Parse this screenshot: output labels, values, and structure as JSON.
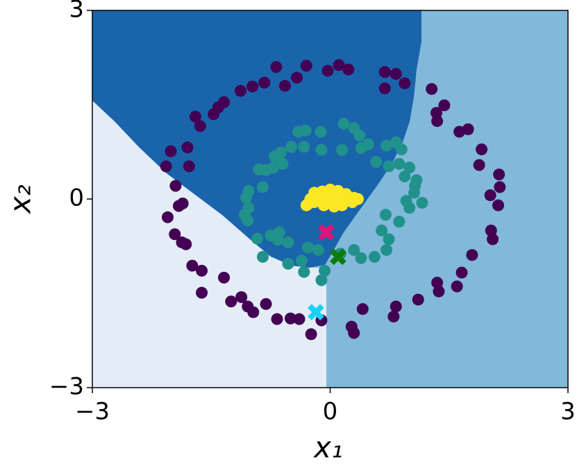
{
  "chart_data": {
    "type": "scatter",
    "x_label": "x₁",
    "y_label": "x₂",
    "xlim": [
      -3,
      3
    ],
    "ylim": [
      -3,
      3
    ],
    "xticks": [
      {
        "value": -3,
        "label": "−3"
      },
      0,
      3
    ],
    "yticks": [
      {
        "value": -3,
        "label": "−3"
      },
      0,
      3
    ],
    "series": [
      {
        "color": "#440154",
        "marker": "o",
        "x": [
          -0.68,
          -0.3,
          -0.03,
          0.11,
          0.23,
          -0.42,
          -0.57,
          -0.83,
          -0.98,
          -1.13,
          -1.34,
          -1.41,
          -1.47,
          -1.7,
          -1.64,
          -1.8,
          -2.01,
          -1.78,
          -2.07,
          -1.95,
          -1.86,
          -1.91,
          -2.05,
          -1.96,
          -1.87,
          -1.82,
          -1.74,
          -1.62,
          -1.34,
          -1.62,
          -1.25,
          -1.12,
          -1.04,
          -0.97,
          -0.81,
          -0.67,
          -0.5,
          -0.39,
          -0.24,
          -0.11,
          0.27,
          0.3,
          0.41,
          0.83,
          0.8,
          1.11,
          1.35,
          1.37,
          1.6,
          1.66,
          1.79,
          2.03,
          2.05,
          2.12,
          2.02,
          2.13,
          1.88,
          1.91,
          1.63,
          1.74,
          1.35,
          1.28,
          1.44,
          0.94,
          0.83,
          0.69,
          0.69,
          1.34,
          2.14
        ],
        "y": [
          2.1,
          2.12,
          2.04,
          2.13,
          2.06,
          1.93,
          1.8,
          1.85,
          1.79,
          1.72,
          1.54,
          1.46,
          1.35,
          1.31,
          1.16,
          0.82,
          0.76,
          0.52,
          0.52,
          0.21,
          -0.07,
          -0.11,
          -0.29,
          -0.56,
          -0.69,
          -0.72,
          -1.06,
          -1.14,
          -1.25,
          -1.49,
          -1.63,
          -1.56,
          -1.71,
          -1.8,
          -1.67,
          -1.91,
          -1.9,
          -1.91,
          -2.15,
          -1.93,
          -2.03,
          -2.13,
          -1.75,
          -1.71,
          -1.87,
          -1.6,
          -1.33,
          -1.47,
          -1.39,
          -1.17,
          -0.89,
          -0.5,
          -0.64,
          -0.1,
          0.06,
          0.39,
          0.54,
          0.79,
          1.07,
          1.11,
          1.24,
          1.75,
          1.49,
          1.84,
          1.99,
          2.02,
          1.76,
          1.37,
          0.19
        ]
      },
      {
        "color": "#21918c",
        "marker": "o",
        "x": [
          -0.4,
          -0.31,
          -0.12,
          0.17,
          0.3,
          0.37,
          0.15,
          0.39,
          0.48,
          0.71,
          0.83,
          0.9,
          0.87,
          1.0,
          0.94,
          0.74,
          0.58,
          -0.11,
          -0.49,
          -0.62,
          -0.7,
          -0.72,
          -0.81,
          -0.9,
          -0.85,
          -1.03,
          -1.06,
          -1.03,
          -1.08,
          -1.04,
          -0.92,
          -0.75,
          -0.64,
          -0.53,
          -0.66,
          -0.85,
          -0.53,
          -0.33,
          -0.11,
          -0.15,
          0.13,
          0.3,
          0.39,
          0.56,
          0.71,
          0.74,
          0.65,
          0.87,
          1.0,
          1.16,
          1.07,
          1.06,
          0.96,
          1.09,
          0.7,
          -0.07,
          -0.36,
          -0.33,
          -0.6,
          -0.28
        ],
        "y": [
          1.07,
          1.09,
          1.07,
          1.2,
          1.13,
          1.01,
          0.78,
          0.81,
          0.87,
          0.85,
          0.9,
          0.79,
          0.56,
          0.5,
          0.36,
          0.52,
          0.59,
          0.78,
          0.83,
          0.74,
          0.68,
          0.5,
          0.46,
          0.47,
          0.19,
          0.13,
          0.02,
          -0.14,
          -0.25,
          -0.34,
          -0.63,
          -0.58,
          -0.53,
          -0.69,
          -0.65,
          -0.92,
          -1.03,
          -1.16,
          -1.29,
          -0.81,
          -0.87,
          -0.81,
          -0.94,
          -0.92,
          -0.81,
          -0.64,
          -0.5,
          -0.36,
          -0.14,
          -0.06,
          0.21,
          0.1,
          -0.03,
          0.3,
          -0.25,
          -1.14,
          -0.98,
          0.83,
          0.56,
          -0.77
        ]
      },
      {
        "color": "#fde725",
        "marker": "o",
        "x": [
          -0.25,
          -0.2,
          -0.1,
          0.0,
          0.1,
          0.2,
          0.3,
          0.28,
          0.15,
          0.05,
          -0.08,
          -0.2,
          -0.28,
          0.0,
          0.1,
          -0.1,
          0.05,
          0.2,
          -0.15,
          0.12,
          -0.3,
          0.35
        ],
        "y": [
          0.0,
          0.1,
          0.12,
          0.15,
          0.13,
          0.08,
          0.02,
          -0.05,
          -0.1,
          -0.12,
          -0.1,
          -0.05,
          -0.08,
          0.0,
          0.03,
          0.02,
          0.08,
          -0.02,
          0.07,
          -0.05,
          -0.1,
          0.0
        ]
      },
      {
        "color": "#e0157a",
        "marker": "X",
        "x": [
          -0.05
        ],
        "y": [
          -0.53
        ]
      },
      {
        "color": "#0a7d0a",
        "marker": "X",
        "x": [
          0.1
        ],
        "y": [
          -0.92
        ]
      },
      {
        "color": "#1ad1f5",
        "marker": "X",
        "x": [
          -0.18
        ],
        "y": [
          -1.8
        ]
      }
    ]
  }
}
